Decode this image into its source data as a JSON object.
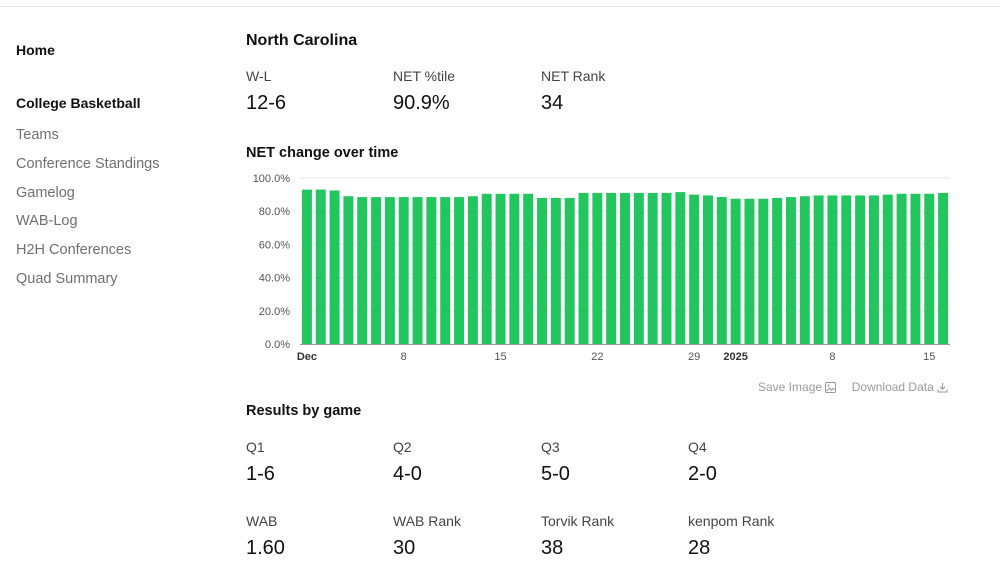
{
  "sidebar": {
    "home": "Home",
    "section": "College Basketball",
    "items": [
      "Teams",
      "Conference Standings",
      "Gamelog",
      "WAB-Log",
      "H2H Conferences",
      "Quad Summary"
    ]
  },
  "team": {
    "name": "North Carolina",
    "stats": [
      {
        "label": "W-L",
        "value": "12-6"
      },
      {
        "label": "NET %tile",
        "value": "90.9%"
      },
      {
        "label": "NET Rank",
        "value": "34"
      }
    ]
  },
  "chart_section": {
    "title": "NET change over time",
    "save_image": "Save Image",
    "download_data": "Download Data"
  },
  "chart_data": {
    "type": "bar",
    "title": "",
    "xlabel": "",
    "ylabel": "",
    "ylim": [
      0,
      100
    ],
    "ytick_labels": [
      "0.0%",
      "20.0%",
      "40.0%",
      "60.0%",
      "80.0%",
      "100.0%"
    ],
    "xtick_labels": [
      {
        "index": 0,
        "label": "Dec",
        "bold": true
      },
      {
        "index": 7,
        "label": "8",
        "bold": false
      },
      {
        "index": 14,
        "label": "15",
        "bold": false
      },
      {
        "index": 21,
        "label": "22",
        "bold": false
      },
      {
        "index": 28,
        "label": "29",
        "bold": false
      },
      {
        "index": 31,
        "label": "2025",
        "bold": true
      },
      {
        "index": 38,
        "label": "8",
        "bold": false
      },
      {
        "index": 45,
        "label": "15",
        "bold": false
      }
    ],
    "color": "#22c55e",
    "values": [
      93,
      93,
      92.5,
      89,
      88.5,
      88.5,
      88.5,
      88.5,
      88.5,
      88.5,
      88.5,
      88.5,
      89,
      90.5,
      90.5,
      90.5,
      90.5,
      88,
      88,
      88,
      91,
      91,
      91,
      91,
      91,
      91,
      91,
      91.5,
      90,
      89.5,
      88.5,
      87.5,
      87.5,
      87.5,
      88,
      88.5,
      89,
      89.5,
      89.5,
      89.5,
      89.5,
      89.5,
      90,
      90.5,
      90.5,
      90.5,
      91
    ]
  },
  "results": {
    "title": "Results by game",
    "quads": [
      {
        "label": "Q1",
        "value": "1-6"
      },
      {
        "label": "Q2",
        "value": "4-0"
      },
      {
        "label": "Q3",
        "value": "5-0"
      },
      {
        "label": "Q4",
        "value": "2-0"
      }
    ],
    "ranks": [
      {
        "label": "WAB",
        "value": "1.60"
      },
      {
        "label": "WAB Rank",
        "value": "30"
      },
      {
        "label": "Torvik Rank",
        "value": "38"
      },
      {
        "label": "kenpom Rank",
        "value": "28"
      }
    ]
  }
}
